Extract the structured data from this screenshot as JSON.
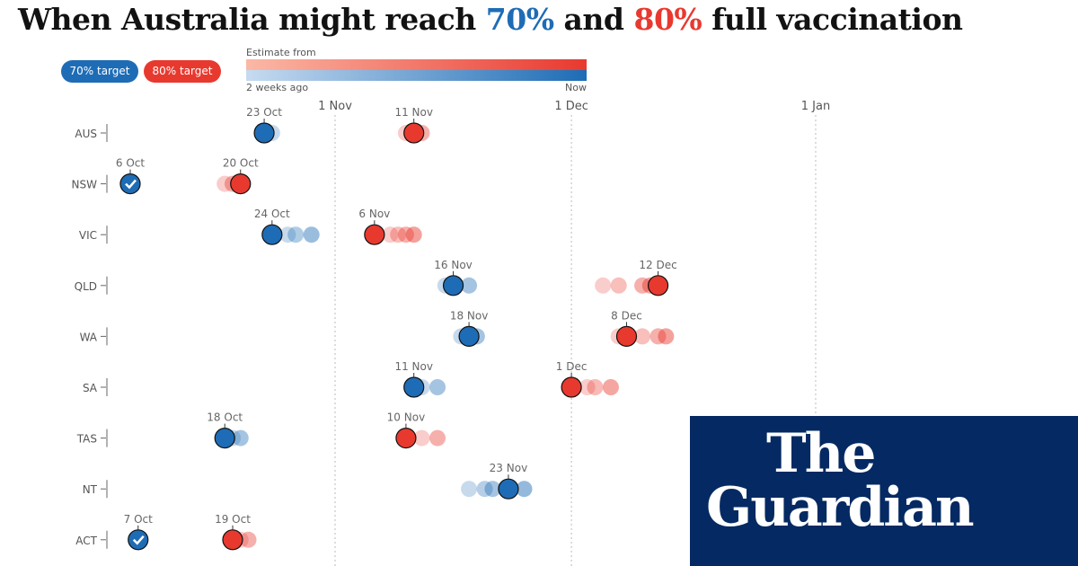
{
  "title": {
    "before": "When Australia might reach ",
    "t70": "70%",
    "mid": " and ",
    "t80": "80%",
    "after": " full vaccination"
  },
  "legend": {
    "target70": "70% target",
    "target80": "80% target",
    "estimate_from": "Estimate from",
    "start": "2 weeks ago",
    "end": "Now"
  },
  "colors": {
    "target70": "#1e6cb5",
    "target80": "#e8392f",
    "logo_bg": "#052962"
  },
  "logo": {
    "line1": "The",
    "line2": "Guardian"
  },
  "chart_data": {
    "type": "scatter",
    "x_type": "date",
    "xlim": [
      "2021-10-01",
      "2022-01-10"
    ],
    "x_ticks": [
      {
        "date": "2021-11-01",
        "label": "1 Nov"
      },
      {
        "date": "2021-12-01",
        "label": "1 Dec"
      },
      {
        "date": "2022-01-01",
        "label": "1 Jan"
      }
    ],
    "grid": "vertical dashed at ticks",
    "rows": [
      {
        "state": "AUS",
        "t70": {
          "label": "23 Oct",
          "date": "2021-10-23",
          "achieved": false,
          "earlier": [
            "2021-10-24"
          ]
        },
        "t80": {
          "label": "11 Nov",
          "date": "2021-11-11",
          "earlier": [
            "2021-11-10",
            "2021-11-12"
          ]
        }
      },
      {
        "state": "NSW",
        "t70": {
          "label": "6 Oct",
          "date": "2021-10-06",
          "achieved": true,
          "earlier": []
        },
        "t80": {
          "label": "20 Oct",
          "date": "2021-10-20",
          "earlier": [
            "2021-10-18",
            "2021-10-19"
          ]
        }
      },
      {
        "state": "VIC",
        "t70": {
          "label": "24 Oct",
          "date": "2021-10-24",
          "achieved": false,
          "earlier": [
            "2021-10-26",
            "2021-10-27",
            "2021-10-29"
          ]
        },
        "t80": {
          "label": "6 Nov",
          "date": "2021-11-06",
          "earlier": [
            "2021-11-08",
            "2021-11-09",
            "2021-11-10",
            "2021-11-11"
          ]
        }
      },
      {
        "state": "QLD",
        "t70": {
          "label": "16 Nov",
          "date": "2021-11-16",
          "achieved": false,
          "earlier": [
            "2021-11-15",
            "2021-11-18"
          ]
        },
        "t80": {
          "label": "12 Dec",
          "date": "2021-12-12",
          "earlier": [
            "2021-12-05",
            "2021-12-07",
            "2021-12-10",
            "2021-12-11"
          ]
        }
      },
      {
        "state": "WA",
        "t70": {
          "label": "18 Nov",
          "date": "2021-11-18",
          "achieved": false,
          "earlier": [
            "2021-11-17",
            "2021-11-19"
          ]
        },
        "t80": {
          "label": "8 Dec",
          "date": "2021-12-08",
          "earlier": [
            "2021-12-07",
            "2021-12-10",
            "2021-12-12",
            "2021-12-13"
          ]
        }
      },
      {
        "state": "SA",
        "t70": {
          "label": "11 Nov",
          "date": "2021-11-11",
          "achieved": false,
          "earlier": [
            "2021-11-12",
            "2021-11-14"
          ]
        },
        "t80": {
          "label": "1 Dec",
          "date": "2021-12-01",
          "earlier": [
            "2021-12-03",
            "2021-12-04",
            "2021-12-06"
          ]
        }
      },
      {
        "state": "TAS",
        "t70": {
          "label": "18 Oct",
          "date": "2021-10-18",
          "achieved": false,
          "earlier": [
            "2021-10-19",
            "2021-10-20"
          ]
        },
        "t80": {
          "label": "10 Nov",
          "date": "2021-11-10",
          "earlier": [
            "2021-11-12",
            "2021-11-14"
          ]
        }
      },
      {
        "state": "NT",
        "t70": {
          "label": "23 Nov",
          "date": "2021-11-23",
          "achieved": false,
          "earlier": [
            "2021-11-18",
            "2021-11-20",
            "2021-11-21",
            "2021-11-25"
          ]
        },
        "t80": null
      },
      {
        "state": "ACT",
        "t70": {
          "label": "7 Oct",
          "date": "2021-10-07",
          "achieved": true,
          "earlier": []
        },
        "t80": {
          "label": "19 Oct",
          "date": "2021-10-19",
          "earlier": [
            "2021-10-20",
            "2021-10-21"
          ]
        }
      }
    ]
  }
}
